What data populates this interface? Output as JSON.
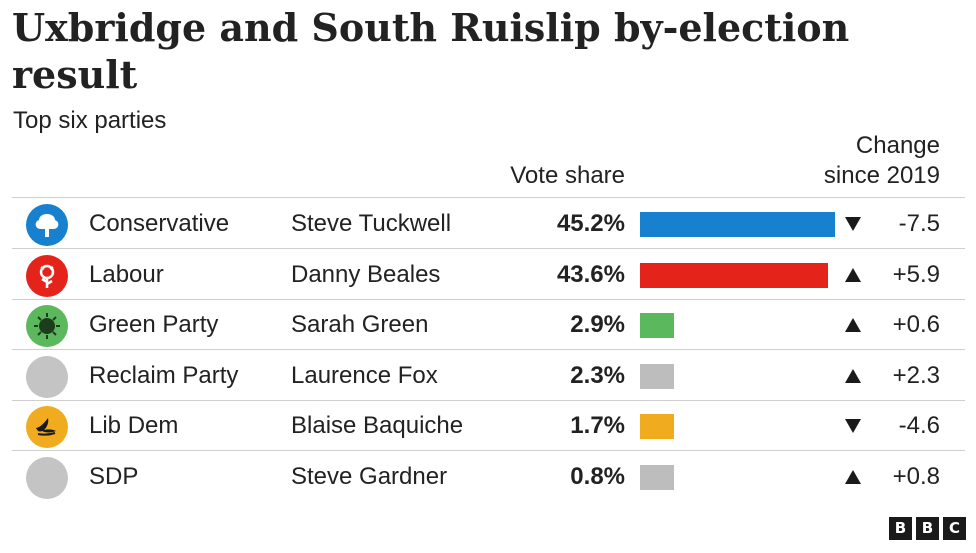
{
  "title": "Uxbridge and South Ruislip by-election result",
  "subtitle": "Top six parties",
  "headers": {
    "vote_share": "Vote share",
    "change": "Change since 2019"
  },
  "branding": [
    "B",
    "B",
    "C"
  ],
  "chart_data": {
    "type": "bar",
    "title": "Uxbridge and South Ruislip by-election result",
    "subtitle": "Top six parties",
    "categories": [
      "Conservative",
      "Labour",
      "Green Party",
      "Reclaim Party",
      "Lib Dem",
      "SDP"
    ],
    "rows": [
      {
        "party": "Conservative",
        "candidate": "Steve Tuckwell",
        "share": 45.2,
        "share_label": "45.2%",
        "change": -7.5,
        "change_label": "-7.5",
        "direction": "down",
        "color": "#1780cf",
        "logo": "tree-icon",
        "logo_bg": "#1780cf"
      },
      {
        "party": "Labour",
        "candidate": "Danny Beales",
        "share": 43.6,
        "share_label": "43.6%",
        "change": 5.9,
        "change_label": "+5.9",
        "direction": "up",
        "color": "#e4231b",
        "logo": "rose-icon",
        "logo_bg": "#e4231b"
      },
      {
        "party": "Green Party",
        "candidate": "Sarah Green",
        "share": 2.9,
        "share_label": "2.9%",
        "change": 0.6,
        "change_label": "+0.6",
        "direction": "up",
        "color": "#5cb85c",
        "logo": "green-globe-icon",
        "logo_bg": "#5cb85c"
      },
      {
        "party": "Reclaim Party",
        "candidate": "Laurence Fox",
        "share": 2.3,
        "share_label": "2.3%",
        "change": 2.3,
        "change_label": "+2.3",
        "direction": "up",
        "color": "#bdbdbd",
        "logo": "blank-circle-icon",
        "logo_bg": "#c4c4c4"
      },
      {
        "party": "Lib Dem",
        "candidate": "Blaise Baquiche",
        "share": 1.7,
        "share_label": "1.7%",
        "change": -4.6,
        "change_label": "-4.6",
        "direction": "down",
        "color": "#f0ac1e",
        "logo": "bird-icon",
        "logo_bg": "#f0ac1e"
      },
      {
        "party": "SDP",
        "candidate": "Steve Gardner",
        "share": 0.8,
        "share_label": "0.8%",
        "change": 0.8,
        "change_label": "+0.8",
        "direction": "up",
        "color": "#bdbdbd",
        "logo": "blank-circle-icon",
        "logo_bg": "#c4c4c4"
      }
    ],
    "xlim": [
      0,
      45.2
    ],
    "grid": false,
    "legend": "none"
  }
}
